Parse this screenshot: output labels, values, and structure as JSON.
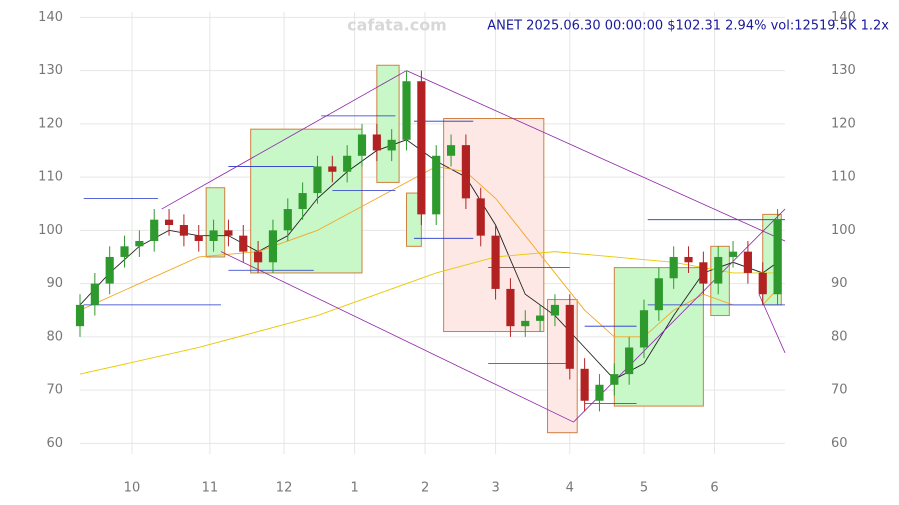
{
  "chart_data": {
    "type": "candlestick",
    "title": "ANET 2025.06.30 00:00:00 $102.31 2.94% vol:12519.5K 1.2x",
    "watermark": "cafata.com",
    "x": [
      0,
      4,
      8,
      12,
      16,
      20,
      24,
      28,
      32,
      36,
      40,
      44,
      48,
      52,
      56,
      60,
      64,
      68,
      72,
      76,
      80,
      84,
      88,
      92,
      96,
      100,
      104,
      108,
      112,
      116,
      120,
      124,
      128,
      132,
      136,
      140,
      144,
      148,
      152,
      156,
      160,
      164,
      168,
      172,
      176,
      180,
      184,
      188
    ],
    "open": [
      82,
      86,
      90,
      95,
      97,
      98,
      102,
      101,
      99,
      98,
      100,
      99,
      96,
      94,
      100,
      104,
      107,
      112,
      111,
      114,
      118,
      115,
      117,
      128,
      103,
      114,
      116,
      106,
      99,
      89,
      82,
      83,
      84,
      86,
      74,
      68,
      71,
      73,
      78,
      85,
      91,
      95,
      94,
      90,
      95,
      96,
      92,
      88
    ],
    "high": [
      88,
      92,
      97,
      99,
      100,
      104,
      104,
      103,
      101,
      102,
      102,
      101,
      98,
      102,
      106,
      109,
      114,
      114,
      116,
      120,
      120,
      119,
      130,
      130,
      116,
      118,
      118,
      108,
      101,
      91,
      85,
      86,
      88,
      88,
      76,
      73,
      75,
      80,
      87,
      93,
      97,
      97,
      96,
      97,
      98,
      98,
      94,
      104
    ],
    "low": [
      80,
      84,
      88,
      93,
      95,
      96,
      99,
      97,
      96,
      96,
      97,
      94,
      92,
      92,
      98,
      102,
      105,
      109,
      109,
      112,
      113,
      113,
      115,
      101,
      101,
      112,
      104,
      97,
      87,
      80,
      80,
      81,
      82,
      72,
      66,
      66,
      69,
      71,
      76,
      83,
      89,
      92,
      88,
      88,
      93,
      90,
      86,
      86
    ],
    "close": [
      86,
      90,
      95,
      97,
      98,
      102,
      101,
      99,
      98,
      100,
      99,
      96,
      94,
      100,
      104,
      107,
      112,
      111,
      114,
      118,
      115,
      117,
      128,
      103,
      114,
      116,
      106,
      99,
      89,
      82,
      83,
      84,
      86,
      74,
      68,
      71,
      73,
      78,
      85,
      91,
      95,
      94,
      90,
      95,
      96,
      92,
      88,
      102
    ],
    "colors": {
      "up": "#2e9a2e",
      "down": "#b22222"
    },
    "xlim": [
      0,
      190
    ],
    "xticks": [
      {
        "value": 14,
        "label": "10"
      },
      {
        "value": 35,
        "label": "11"
      },
      {
        "value": 55,
        "label": "12"
      },
      {
        "value": 74,
        "label": "1"
      },
      {
        "value": 93,
        "label": "2"
      },
      {
        "value": 112,
        "label": "3"
      },
      {
        "value": 132,
        "label": "4"
      },
      {
        "value": 152,
        "label": "5"
      },
      {
        "value": 171,
        "label": "6"
      }
    ],
    "ylim": [
      58,
      141
    ],
    "yticks": [
      60,
      70,
      80,
      90,
      100,
      110,
      120,
      130,
      140
    ],
    "grid": true,
    "lines": [
      {
        "color": "#222222",
        "x": [
          0,
          8,
          16,
          24,
          32,
          40,
          48,
          56,
          64,
          72,
          80,
          88,
          96,
          104,
          112,
          120,
          128,
          136,
          144,
          152,
          160,
          168,
          176,
          184,
          188
        ],
        "values": [
          86,
          92,
          97,
          100,
          99,
          99,
          96,
          99,
          106,
          111,
          115,
          117,
          113,
          110,
          101,
          88,
          84,
          78,
          72,
          75,
          84,
          92,
          94,
          92,
          94
        ]
      },
      {
        "color": "#f5a623",
        "x": [
          0,
          16,
          32,
          48,
          64,
          80,
          96,
          104,
          112,
          120,
          128,
          136,
          144,
          152,
          160,
          168,
          176,
          184,
          188
        ],
        "values": [
          85,
          90,
          95,
          96,
          100,
          106,
          112,
          111,
          106,
          99,
          92,
          85,
          80,
          80,
          85,
          88,
          86,
          86,
          89
        ]
      },
      {
        "color": "#e8c800",
        "x": [
          0,
          32,
          64,
          96,
          112,
          128,
          144,
          160,
          176,
          188
        ],
        "values": [
          73,
          78,
          84,
          92,
          95,
          96,
          95,
          94,
          92,
          92
        ]
      }
    ],
    "boxes": [
      {
        "x": [
          34,
          39
        ],
        "y": [
          95,
          108
        ],
        "color": "green"
      },
      {
        "x": [
          46,
          76
        ],
        "y": [
          92,
          119
        ],
        "color": "green"
      },
      {
        "x": [
          80,
          86
        ],
        "y": [
          109,
          131
        ],
        "color": "green"
      },
      {
        "x": [
          88,
          92
        ],
        "y": [
          97,
          107
        ],
        "color": "green"
      },
      {
        "x": [
          98,
          125
        ],
        "y": [
          81,
          121
        ],
        "color": "red"
      },
      {
        "x": [
          126,
          134
        ],
        "y": [
          62,
          87
        ],
        "color": "red"
      },
      {
        "x": [
          144,
          168
        ],
        "y": [
          67,
          93
        ],
        "color": "green"
      },
      {
        "x": [
          170,
          175
        ],
        "y": [
          84,
          97
        ],
        "color": "green"
      },
      {
        "x": [
          184,
          189
        ],
        "y": [
          86,
          103
        ],
        "color": "green"
      }
    ],
    "levels": [
      {
        "x": [
          1,
          21
        ],
        "y": 106,
        "color": "#2233cc"
      },
      {
        "x": [
          1,
          38
        ],
        "y": 86,
        "color": "#2233cc"
      },
      {
        "x": [
          40,
          63
        ],
        "y": 112,
        "color": "#2233cc"
      },
      {
        "x": [
          40,
          63
        ],
        "y": 92.5,
        "color": "#2233cc"
      },
      {
        "x": [
          65,
          85
        ],
        "y": 121.5,
        "color": "#2233cc"
      },
      {
        "x": [
          68,
          85
        ],
        "y": 107.5,
        "color": "#2233cc"
      },
      {
        "x": [
          90,
          106
        ],
        "y": 120.5,
        "color": "#2233cc"
      },
      {
        "x": [
          90,
          106
        ],
        "y": 98.5,
        "color": "#2233cc"
      },
      {
        "x": [
          110,
          132
        ],
        "y": 93,
        "color": "#2233cc"
      },
      {
        "x": [
          110,
          132
        ],
        "y": 75,
        "color": "#2233cc"
      },
      {
        "x": [
          136,
          150
        ],
        "y": 82,
        "color": "#2233cc"
      },
      {
        "x": [
          136,
          150
        ],
        "y": 67.5,
        "color": "#2233cc"
      },
      {
        "x": [
          153,
          190
        ],
        "y": 102,
        "color": "#2233cc"
      },
      {
        "x": [
          153,
          190
        ],
        "y": 86,
        "color": "#2233cc"
      }
    ],
    "trendlines": [
      {
        "x": [
          22,
          88
        ],
        "y": [
          104,
          130
        ],
        "color": "#8e24aa"
      },
      {
        "x": [
          88,
          190
        ],
        "y": [
          130,
          98
        ],
        "color": "#8e24aa"
      },
      {
        "x": [
          38,
          133
        ],
        "y": [
          96,
          64
        ],
        "color": "#8e24aa"
      },
      {
        "x": [
          133,
          190
        ],
        "y": [
          64,
          104
        ],
        "color": "#8e24aa"
      },
      {
        "x": [
          183,
          190
        ],
        "y": [
          88,
          77
        ],
        "color": "#8e24aa"
      }
    ]
  }
}
